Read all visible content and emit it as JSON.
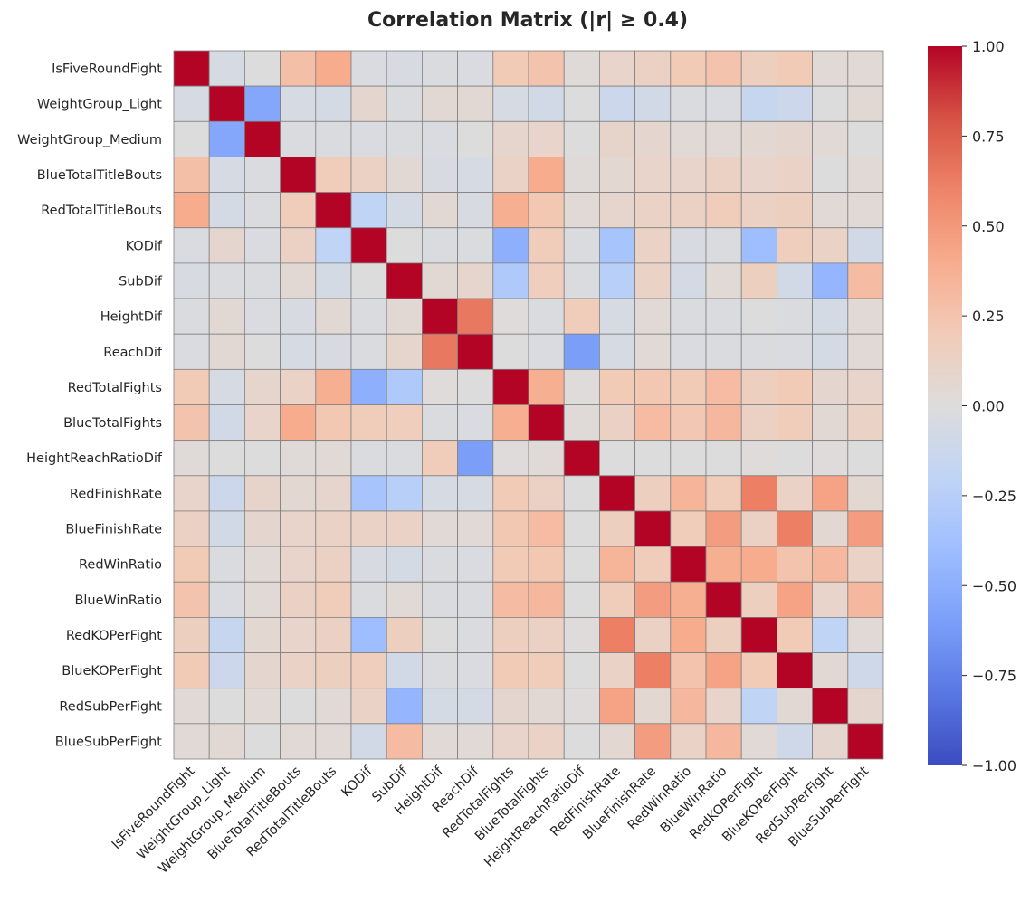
{
  "chart_data": {
    "type": "heatmap",
    "title": "Correlation Matrix (|r| ≥ 0.4)",
    "xlabel": "",
    "ylabel": "",
    "labels": [
      "IsFiveRoundFight",
      "WeightGroup_Light",
      "WeightGroup_Medium",
      "BlueTotalTitleBouts",
      "RedTotalTitleBouts",
      "KODif",
      "SubDif",
      "HeightDif",
      "ReachDif",
      "RedTotalFights",
      "BlueTotalFights",
      "HeightReachRatioDif",
      "RedFinishRate",
      "BlueFinishRate",
      "RedWinRatio",
      "BlueWinRatio",
      "RedKOPerFight",
      "BlueKOPerFight",
      "RedSubPerFight",
      "BlueSubPerFight"
    ],
    "matrix": [
      [
        1.0,
        -0.05,
        0.0,
        0.28,
        0.4,
        -0.03,
        -0.04,
        -0.02,
        -0.03,
        0.2,
        0.25,
        0.02,
        0.1,
        0.13,
        0.2,
        0.25,
        0.15,
        0.2,
        0.04,
        0.04
      ],
      [
        -0.05,
        1.0,
        -0.55,
        -0.05,
        -0.06,
        0.07,
        -0.02,
        0.05,
        0.05,
        -0.05,
        -0.08,
        0.0,
        -0.12,
        -0.08,
        -0.02,
        -0.03,
        -0.15,
        -0.12,
        0.0,
        0.05
      ],
      [
        0.0,
        -0.55,
        1.0,
        -0.02,
        -0.02,
        -0.03,
        -0.02,
        -0.03,
        -0.01,
        0.08,
        0.1,
        -0.01,
        0.09,
        0.07,
        0.04,
        0.04,
        0.06,
        0.07,
        0.03,
        0.0
      ],
      [
        0.28,
        -0.05,
        -0.02,
        1.0,
        0.18,
        0.13,
        0.05,
        -0.04,
        -0.05,
        0.12,
        0.4,
        0.02,
        0.06,
        0.1,
        0.1,
        0.13,
        0.1,
        0.12,
        0.0,
        0.03
      ],
      [
        0.4,
        -0.06,
        -0.02,
        0.18,
        1.0,
        -0.2,
        -0.06,
        0.05,
        -0.04,
        0.38,
        0.22,
        0.04,
        0.08,
        0.12,
        0.13,
        0.18,
        0.13,
        0.15,
        0.03,
        0.04
      ],
      [
        -0.03,
        0.07,
        -0.03,
        0.13,
        -0.2,
        1.0,
        -0.01,
        -0.02,
        -0.02,
        -0.5,
        0.18,
        -0.02,
        -0.35,
        0.12,
        -0.04,
        -0.02,
        -0.4,
        0.17,
        0.12,
        -0.08
      ],
      [
        -0.04,
        -0.02,
        -0.02,
        0.05,
        -0.06,
        -0.01,
        1.0,
        0.05,
        0.08,
        -0.3,
        0.17,
        -0.02,
        -0.25,
        0.12,
        -0.06,
        0.03,
        0.15,
        -0.08,
        -0.45,
        0.3
      ],
      [
        -0.02,
        0.05,
        -0.03,
        -0.04,
        0.05,
        -0.02,
        0.05,
        1.0,
        0.65,
        0.01,
        -0.02,
        0.18,
        -0.05,
        0.04,
        -0.02,
        -0.02,
        -0.01,
        -0.02,
        -0.06,
        0.04
      ],
      [
        -0.03,
        0.05,
        -0.01,
        -0.05,
        -0.04,
        -0.02,
        0.08,
        0.65,
        1.0,
        -0.01,
        -0.03,
        -0.6,
        -0.05,
        0.03,
        -0.03,
        -0.02,
        -0.02,
        -0.03,
        -0.06,
        0.04
      ],
      [
        0.2,
        -0.05,
        0.08,
        0.12,
        0.38,
        -0.5,
        -0.3,
        0.01,
        -0.01,
        1.0,
        0.38,
        0.01,
        0.2,
        0.22,
        0.2,
        0.3,
        0.15,
        0.2,
        0.07,
        0.1
      ],
      [
        0.25,
        -0.08,
        0.1,
        0.4,
        0.22,
        0.18,
        0.17,
        -0.02,
        -0.03,
        0.38,
        1.0,
        0.02,
        0.13,
        0.3,
        0.22,
        0.32,
        0.13,
        0.18,
        0.05,
        0.12
      ],
      [
        0.02,
        0.0,
        -0.01,
        0.02,
        0.04,
        -0.02,
        -0.02,
        0.18,
        -0.6,
        0.01,
        0.02,
        1.0,
        -0.01,
        0.0,
        -0.01,
        0.0,
        0.01,
        0.0,
        0.01,
        0.0
      ],
      [
        0.1,
        -0.12,
        0.09,
        0.06,
        0.08,
        -0.35,
        -0.25,
        -0.05,
        -0.05,
        0.2,
        0.13,
        -0.01,
        1.0,
        0.15,
        0.35,
        0.18,
        0.62,
        0.12,
        0.45,
        0.06
      ],
      [
        0.13,
        -0.08,
        0.07,
        0.1,
        0.12,
        0.12,
        0.12,
        0.04,
        0.03,
        0.22,
        0.3,
        0.0,
        0.15,
        1.0,
        0.18,
        0.48,
        0.13,
        0.62,
        0.06,
        0.48
      ],
      [
        0.2,
        -0.02,
        0.04,
        0.1,
        0.13,
        -0.04,
        -0.06,
        -0.02,
        -0.03,
        0.2,
        0.22,
        -0.01,
        0.35,
        0.18,
        1.0,
        0.38,
        0.4,
        0.25,
        0.32,
        0.12
      ],
      [
        0.25,
        -0.03,
        0.04,
        0.13,
        0.18,
        -0.02,
        0.03,
        -0.02,
        -0.02,
        0.3,
        0.32,
        0.0,
        0.18,
        0.48,
        0.38,
        1.0,
        0.15,
        0.45,
        0.1,
        0.32
      ],
      [
        0.15,
        -0.15,
        0.06,
        0.1,
        0.13,
        -0.4,
        0.15,
        -0.01,
        -0.02,
        0.15,
        0.13,
        0.01,
        0.62,
        0.13,
        0.4,
        0.15,
        1.0,
        0.2,
        -0.2,
        0.03
      ],
      [
        0.2,
        -0.12,
        0.07,
        0.12,
        0.15,
        0.17,
        -0.08,
        -0.02,
        -0.03,
        0.2,
        0.18,
        0.0,
        0.12,
        0.62,
        0.25,
        0.45,
        0.2,
        1.0,
        0.05,
        -0.1
      ],
      [
        0.04,
        0.0,
        0.03,
        0.0,
        0.03,
        0.12,
        -0.45,
        -0.06,
        -0.06,
        0.07,
        0.05,
        0.01,
        0.45,
        0.06,
        0.32,
        0.1,
        -0.2,
        0.05,
        1.0,
        0.07
      ],
      [
        0.04,
        0.05,
        0.0,
        0.03,
        0.04,
        -0.08,
        0.3,
        0.04,
        0.04,
        0.1,
        0.12,
        0.0,
        0.06,
        0.48,
        0.12,
        0.32,
        0.03,
        -0.1,
        0.07,
        1.0
      ]
    ],
    "colorbar": {
      "colormap": "coolwarm",
      "vmin": -1.0,
      "vmax": 1.0,
      "ticks": [
        -1.0,
        -0.75,
        -0.5,
        -0.25,
        0.0,
        0.25,
        0.5,
        0.75,
        1.0
      ],
      "tick_labels": [
        "−1.00",
        "−0.75",
        "−0.50",
        "−0.25",
        "0.00",
        "0.25",
        "0.50",
        "0.75",
        "1.00"
      ],
      "colors": [
        "#3b4cc0",
        "#5977e3",
        "#7b9ff9",
        "#9ebeff",
        "#c0d4f5",
        "#dddcdc",
        "#f2cbb7",
        "#f7ac8e",
        "#ee8468",
        "#d65244",
        "#b40426"
      ]
    },
    "grid": true,
    "cell_border_color": "#808080"
  }
}
